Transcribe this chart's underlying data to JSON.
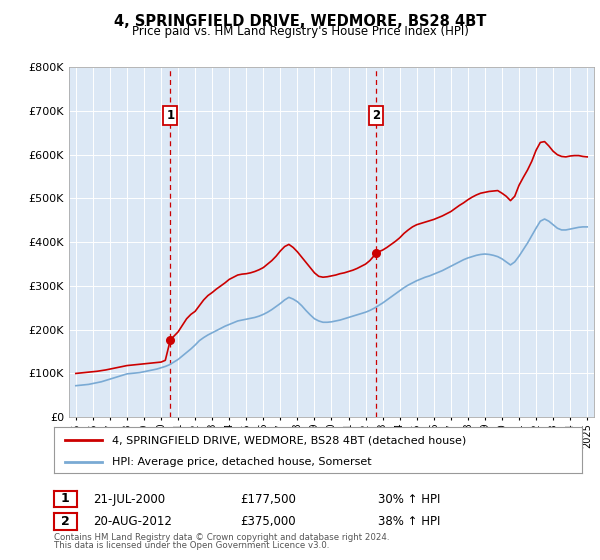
{
  "title": "4, SPRINGFIELD DRIVE, WEDMORE, BS28 4BT",
  "subtitle": "Price paid vs. HM Land Registry's House Price Index (HPI)",
  "legend_label_red": "4, SPRINGFIELD DRIVE, WEDMORE, BS28 4BT (detached house)",
  "legend_label_blue": "HPI: Average price, detached house, Somerset",
  "footer1": "Contains HM Land Registry data © Crown copyright and database right 2024.",
  "footer2": "This data is licensed under the Open Government Licence v3.0.",
  "sale1_label": "1",
  "sale1_date": "21-JUL-2000",
  "sale1_price": "£177,500",
  "sale1_hpi": "30% ↑ HPI",
  "sale1_year": 2000.55,
  "sale1_value": 177500,
  "sale2_label": "2",
  "sale2_date": "20-AUG-2012",
  "sale2_price": "£375,000",
  "sale2_hpi": "38% ↑ HPI",
  "sale2_year": 2012.63,
  "sale2_value": 375000,
  "ylim": [
    0,
    800000
  ],
  "xlim_left": 1994.6,
  "xlim_right": 2025.4,
  "red_color": "#cc0000",
  "blue_color": "#7aaad4",
  "bg_color": "#dce8f5",
  "grid_color": "#ffffff",
  "red_years": [
    1995.0,
    1995.25,
    1995.5,
    1995.75,
    1996.0,
    1996.25,
    1996.5,
    1996.75,
    1997.0,
    1997.25,
    1997.5,
    1997.75,
    1998.0,
    1998.25,
    1998.5,
    1998.75,
    1999.0,
    1999.25,
    1999.5,
    1999.75,
    2000.0,
    2000.25,
    2000.55,
    2000.75,
    2001.0,
    2001.25,
    2001.5,
    2001.75,
    2002.0,
    2002.25,
    2002.5,
    2002.75,
    2003.0,
    2003.25,
    2003.5,
    2003.75,
    2004.0,
    2004.25,
    2004.5,
    2004.75,
    2005.0,
    2005.25,
    2005.5,
    2005.75,
    2006.0,
    2006.25,
    2006.5,
    2006.75,
    2007.0,
    2007.25,
    2007.5,
    2007.75,
    2008.0,
    2008.25,
    2008.5,
    2008.75,
    2009.0,
    2009.25,
    2009.5,
    2009.75,
    2010.0,
    2010.25,
    2010.5,
    2010.75,
    2011.0,
    2011.25,
    2011.5,
    2011.75,
    2012.0,
    2012.25,
    2012.63,
    2012.75,
    2013.0,
    2013.25,
    2013.5,
    2013.75,
    2014.0,
    2014.25,
    2014.5,
    2014.75,
    2015.0,
    2015.25,
    2015.5,
    2015.75,
    2016.0,
    2016.25,
    2016.5,
    2016.75,
    2017.0,
    2017.25,
    2017.5,
    2017.75,
    2018.0,
    2018.25,
    2018.5,
    2018.75,
    2019.0,
    2019.25,
    2019.5,
    2019.75,
    2020.0,
    2020.25,
    2020.5,
    2020.75,
    2021.0,
    2021.25,
    2021.5,
    2021.75,
    2022.0,
    2022.25,
    2022.5,
    2022.75,
    2023.0,
    2023.25,
    2023.5,
    2023.75,
    2024.0,
    2024.25,
    2024.5,
    2024.75,
    2025.0
  ],
  "red_values": [
    100000,
    101000,
    102000,
    103000,
    104000,
    105000,
    106500,
    108000,
    110000,
    112000,
    114000,
    116000,
    118000,
    119000,
    120000,
    121000,
    122000,
    123000,
    124000,
    125000,
    126000,
    130000,
    177500,
    185000,
    195000,
    210000,
    225000,
    235000,
    242000,
    255000,
    268000,
    278000,
    285000,
    293000,
    300000,
    307000,
    315000,
    320000,
    325000,
    327000,
    328000,
    330000,
    333000,
    337000,
    342000,
    350000,
    358000,
    368000,
    380000,
    390000,
    395000,
    388000,
    378000,
    366000,
    354000,
    342000,
    330000,
    322000,
    320000,
    321000,
    323000,
    325000,
    328000,
    330000,
    333000,
    336000,
    340000,
    345000,
    350000,
    358000,
    375000,
    378000,
    382000,
    388000,
    395000,
    402000,
    410000,
    420000,
    428000,
    435000,
    440000,
    443000,
    446000,
    449000,
    452000,
    456000,
    460000,
    465000,
    470000,
    477000,
    484000,
    490000,
    497000,
    503000,
    508000,
    512000,
    514000,
    516000,
    517000,
    518000,
    512000,
    505000,
    495000,
    505000,
    530000,
    548000,
    565000,
    585000,
    610000,
    628000,
    630000,
    620000,
    608000,
    600000,
    596000,
    595000,
    597000,
    598000,
    598000,
    596000,
    595000
  ],
  "blue_years": [
    1995.0,
    1995.25,
    1995.5,
    1995.75,
    1996.0,
    1996.25,
    1996.5,
    1996.75,
    1997.0,
    1997.25,
    1997.5,
    1997.75,
    1998.0,
    1998.25,
    1998.5,
    1998.75,
    1999.0,
    1999.25,
    1999.5,
    1999.75,
    2000.0,
    2000.25,
    2000.5,
    2000.75,
    2001.0,
    2001.25,
    2001.5,
    2001.75,
    2002.0,
    2002.25,
    2002.5,
    2002.75,
    2003.0,
    2003.25,
    2003.5,
    2003.75,
    2004.0,
    2004.25,
    2004.5,
    2004.75,
    2005.0,
    2005.25,
    2005.5,
    2005.75,
    2006.0,
    2006.25,
    2006.5,
    2006.75,
    2007.0,
    2007.25,
    2007.5,
    2007.75,
    2008.0,
    2008.25,
    2008.5,
    2008.75,
    2009.0,
    2009.25,
    2009.5,
    2009.75,
    2010.0,
    2010.25,
    2010.5,
    2010.75,
    2011.0,
    2011.25,
    2011.5,
    2011.75,
    2012.0,
    2012.25,
    2012.5,
    2012.75,
    2013.0,
    2013.25,
    2013.5,
    2013.75,
    2014.0,
    2014.25,
    2014.5,
    2014.75,
    2015.0,
    2015.25,
    2015.5,
    2015.75,
    2016.0,
    2016.25,
    2016.5,
    2016.75,
    2017.0,
    2017.25,
    2017.5,
    2017.75,
    2018.0,
    2018.25,
    2018.5,
    2018.75,
    2019.0,
    2019.25,
    2019.5,
    2019.75,
    2020.0,
    2020.25,
    2020.5,
    2020.75,
    2021.0,
    2021.25,
    2021.5,
    2021.75,
    2022.0,
    2022.25,
    2022.5,
    2022.75,
    2023.0,
    2023.25,
    2023.5,
    2023.75,
    2024.0,
    2024.25,
    2024.5,
    2024.75,
    2025.0
  ],
  "blue_values": [
    72000,
    73000,
    74000,
    75000,
    77000,
    79000,
    81000,
    84000,
    87000,
    90000,
    93000,
    96000,
    99000,
    100000,
    101000,
    102000,
    104000,
    106000,
    108000,
    110000,
    113000,
    116000,
    120000,
    126000,
    132000,
    140000,
    148000,
    156000,
    165000,
    175000,
    182000,
    188000,
    193000,
    198000,
    203000,
    208000,
    212000,
    216000,
    220000,
    222000,
    224000,
    226000,
    228000,
    231000,
    235000,
    240000,
    246000,
    253000,
    260000,
    268000,
    274000,
    270000,
    264000,
    255000,
    244000,
    234000,
    225000,
    220000,
    217000,
    217000,
    218000,
    220000,
    222000,
    225000,
    228000,
    231000,
    234000,
    237000,
    240000,
    244000,
    249000,
    255000,
    261000,
    268000,
    275000,
    282000,
    289000,
    296000,
    302000,
    307000,
    312000,
    316000,
    320000,
    323000,
    327000,
    331000,
    335000,
    340000,
    345000,
    350000,
    355000,
    360000,
    364000,
    367000,
    370000,
    372000,
    373000,
    372000,
    370000,
    367000,
    362000,
    355000,
    348000,
    355000,
    368000,
    383000,
    398000,
    415000,
    432000,
    448000,
    453000,
    448000,
    440000,
    432000,
    428000,
    428000,
    430000,
    432000,
    434000,
    435000,
    435000
  ]
}
